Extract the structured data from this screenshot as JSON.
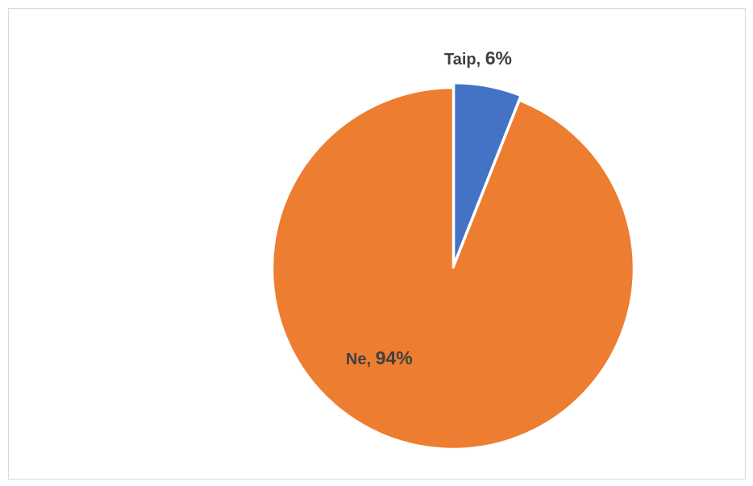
{
  "chart_data": {
    "type": "pie",
    "title": "",
    "categories": [
      "Taip",
      "Ne"
    ],
    "values": [
      6,
      94
    ],
    "data_labels": [
      "Taip, 6%",
      "Ne, 94%"
    ],
    "label_parts": [
      {
        "category": "Taip",
        "separator": ", ",
        "percent": "6%"
      },
      {
        "category": "Ne",
        "separator": ", ",
        "percent": "94%"
      }
    ],
    "colors": [
      "#4472C4",
      "#ED7D31"
    ],
    "exploded_slice": "Taip",
    "legend": "none"
  }
}
